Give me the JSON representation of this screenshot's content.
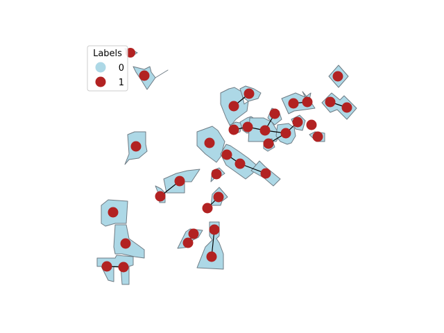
{
  "legend": {
    "title": "Labels",
    "entries": [
      {
        "label": "0",
        "color": "#add8e6"
      },
      {
        "label": "1",
        "color": "#b22222"
      }
    ]
  },
  "colors": {
    "region_fill": "#add8e6",
    "region_edge": "#6e7b84",
    "node": "#b22222",
    "edge": "#000000"
  }
}
